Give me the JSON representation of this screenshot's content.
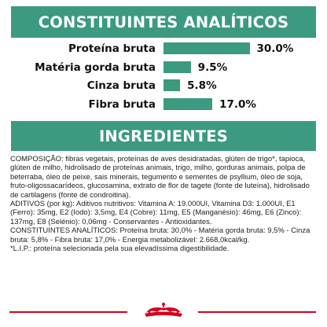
{
  "analytic_section": {
    "title": "CONSTITUINTES ANALÍTICOS",
    "rows": [
      {
        "label": "Proteína bruta",
        "value_text": "30.0%",
        "percent": 30.0
      },
      {
        "label": "Matéria gorda bruta",
        "value_text": "9.5%",
        "percent": 9.5
      },
      {
        "label": "Cinza bruta",
        "value_text": "5.8%",
        "percent": 5.8
      },
      {
        "label": "Fibra bruta",
        "value_text": "17.0%",
        "percent": 17.0
      }
    ],
    "bar_color": "#3b9a7f"
  },
  "ingredients_section": {
    "title": "INGREDIENTES",
    "text": "COMPOSIÇÃO: fibras vegetais, proteínas de aves desidratadas, glúten de trigo*, tapioca, glúten de milho, hidrolisado de proteínas animais, trigo, milho, gorduras animais, polpa de beterraba, óleo de peixe, sais minerais, tegumento e sementes de psyllium, óleo de soja, fruto-oligossacarídeos, glucosamina, extrato de flor de tagete (fonte de luteína), hidrolisado de cartilagens (fonte de condroitina).\nADITIVOS (por kg): Aditivos nutritivos: Vitamina A: 19.000UI, Vitamina D3: 1.000UI, E1 (Ferro): 35mg, E2 (Iodo): 3,5mg, E4 (Cobre): 11mg, E5 (Manganésio): 46mg, E6 (Zinco): 137mg, E8 (Selénio): 0,06mg - Conservantes - Antioxidantes.\nCONSTITUINTES ANALÍTICOS: Proteína bruta: 30,0% - Matéria gorda bruta: 9,5% - Cinza bruta: 5,8% - Fibra bruta: 17,0% - Energia metabolizável: 2.668,0kcal/kg.\n*L.I.P.: proteína selecionada pela sua elevadíssima digestibilidade."
  },
  "colors": {
    "banner": "#3b9a7f",
    "footer_line": "#d4001f",
    "logo": "#d4001f"
  },
  "footer": {
    "logo_icon": "royal-crown-icon"
  }
}
